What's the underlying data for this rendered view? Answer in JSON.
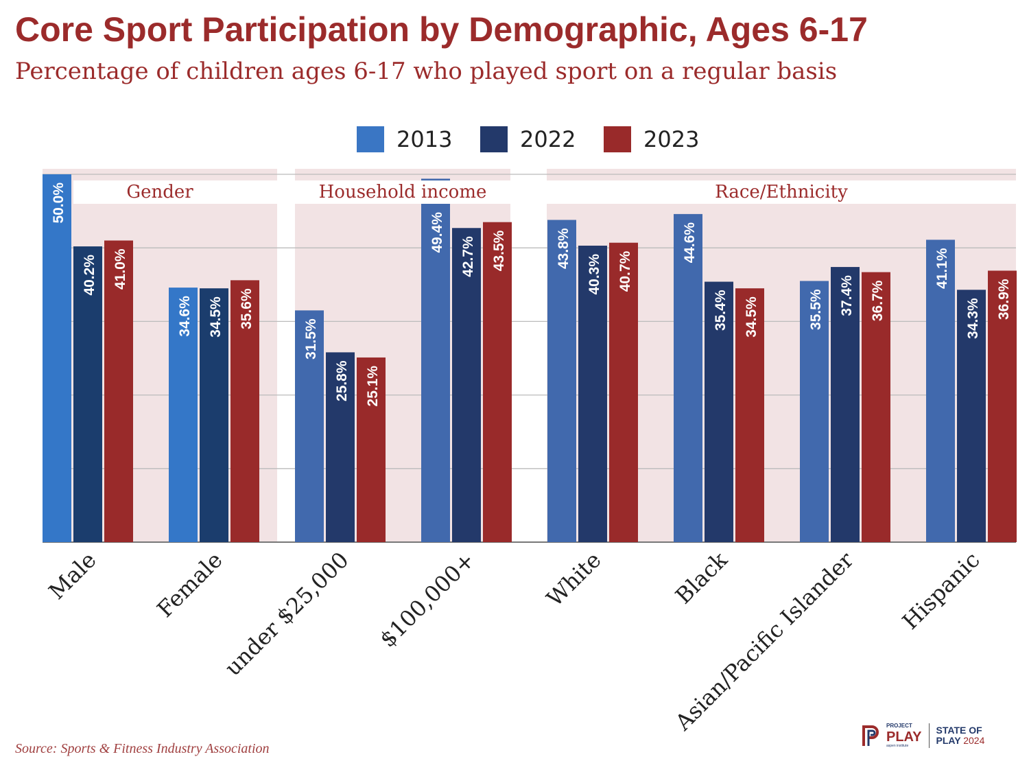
{
  "chart_data": {
    "type": "bar",
    "title": "Core Sport Participation by Demographic, Ages 6-17",
    "subtitle": "Percentage of children ages 6-17 who played sport on a regular basis",
    "categories": [
      "Male",
      "Female",
      "under $25,000",
      "$100,000+",
      "White",
      "Black",
      "Asian/Pacific Islander",
      "Hispanic"
    ],
    "groups": [
      {
        "label": "Gender",
        "categories": [
          "Male",
          "Female"
        ]
      },
      {
        "label": "Household income",
        "categories": [
          "under $25,000",
          "$100,000+"
        ]
      },
      {
        "label": "Race/Ethnicity",
        "categories": [
          "White",
          "Black",
          "Asian/Pacific Islander",
          "Hispanic"
        ]
      }
    ],
    "series": [
      {
        "name": "2013",
        "color": "#3a76c4",
        "values": [
          50.0,
          34.6,
          31.5,
          49.4,
          43.8,
          44.6,
          35.5,
          41.1
        ]
      },
      {
        "name": "2022",
        "color": "#23396a",
        "values": [
          40.2,
          34.5,
          25.8,
          42.7,
          40.3,
          35.4,
          37.4,
          34.3
        ]
      },
      {
        "name": "2023",
        "color": "#992a2a",
        "values": [
          41.0,
          35.6,
          25.1,
          43.5,
          40.7,
          34.5,
          36.7,
          36.9
        ]
      }
    ],
    "data_labels": [
      [
        "50.0%",
        "34.6%",
        "31.5%",
        "49.4%",
        "43.8%",
        "44.6%",
        "35.5%",
        "41.1%"
      ],
      [
        "40.2%",
        "34.5%",
        "25.8%",
        "42.7%",
        "40.3%",
        "35.4%",
        "37.4%",
        "34.3%"
      ],
      [
        "41.0%",
        "35.6%",
        "25.1%",
        "43.5%",
        "40.7%",
        "34.5%",
        "36.7%",
        "36.9%"
      ]
    ],
    "ylim": [
      0,
      50
    ],
    "grid": true,
    "legend": "top-center",
    "xlabel": "",
    "ylabel": ""
  },
  "source": "Source: Sports & Fitness Industry Association",
  "logo": {
    "project": "PROJECT",
    "play": "PLAY",
    "aspen": "aspen institute",
    "state": "STATE OF",
    "play2": "PLAY",
    "year": "2024"
  }
}
